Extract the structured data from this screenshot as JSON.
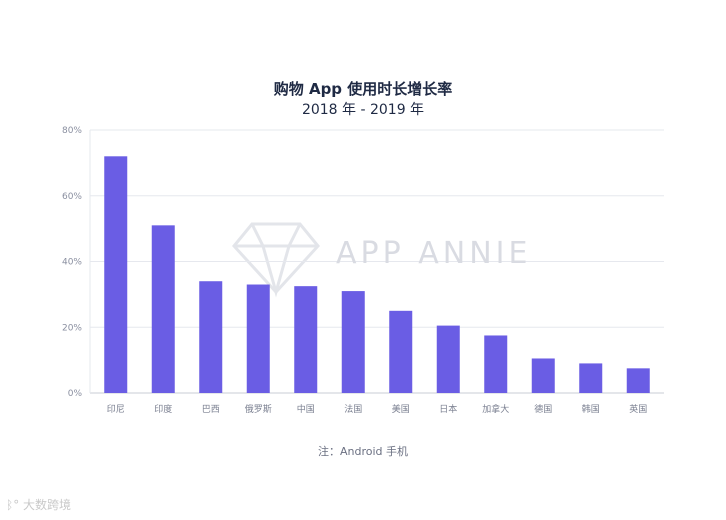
{
  "chart_data": {
    "type": "bar",
    "title": "购物 App 使用时长增长率",
    "subtitle": "2018 年 - 2019 年",
    "categories": [
      "印尼",
      "印度",
      "巴西",
      "俄罗斯",
      "中国",
      "法国",
      "美国",
      "日本",
      "加拿大",
      "德国",
      "韩国",
      "英国"
    ],
    "values": [
      72,
      51,
      34,
      33,
      32.5,
      31,
      25,
      20.5,
      17.5,
      10.5,
      9,
      7.5
    ],
    "y_ticks": [
      "0%",
      "20%",
      "40%",
      "60%",
      "80%"
    ],
    "ylim": [
      0,
      80
    ],
    "grid": true,
    "bar_color": "#6a5de4",
    "note": "注：Android 手机"
  },
  "watermark": {
    "text": "APP ANNIE",
    "icon": "diamond-logo-icon"
  },
  "corner_mark": {
    "text": "大数跨境",
    "icon": "brand-logo-icon"
  }
}
